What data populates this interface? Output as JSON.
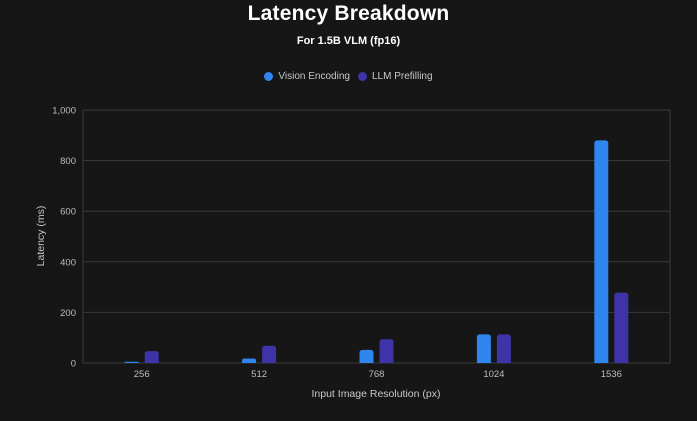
{
  "chart_data": {
    "type": "bar",
    "title": "Latency Breakdown",
    "subtitle": "For 1.5B VLM (fp16)",
    "xlabel": "Input Image Resolution (px)",
    "ylabel": "Latency (ms)",
    "categories": [
      "256",
      "512",
      "768",
      "1024",
      "1536"
    ],
    "series": [
      {
        "name": "Vision Encoding",
        "color": "#2f86ee",
        "values": [
          5,
          18,
          52,
          113,
          880
        ]
      },
      {
        "name": "LLM Prefilling",
        "color": "#3f33a8",
        "values": [
          47,
          68,
          94,
          113,
          278
        ]
      }
    ],
    "ylim": [
      0,
      1000
    ],
    "yticks": [
      0,
      200,
      400,
      600,
      800,
      1000
    ],
    "ytick_labels": [
      "0",
      "200",
      "400",
      "600",
      "800",
      "1,000"
    ],
    "grid": true,
    "legend_position": "top-center",
    "colors": {
      "background": "#161616",
      "grid": "#3a3a3a"
    }
  }
}
